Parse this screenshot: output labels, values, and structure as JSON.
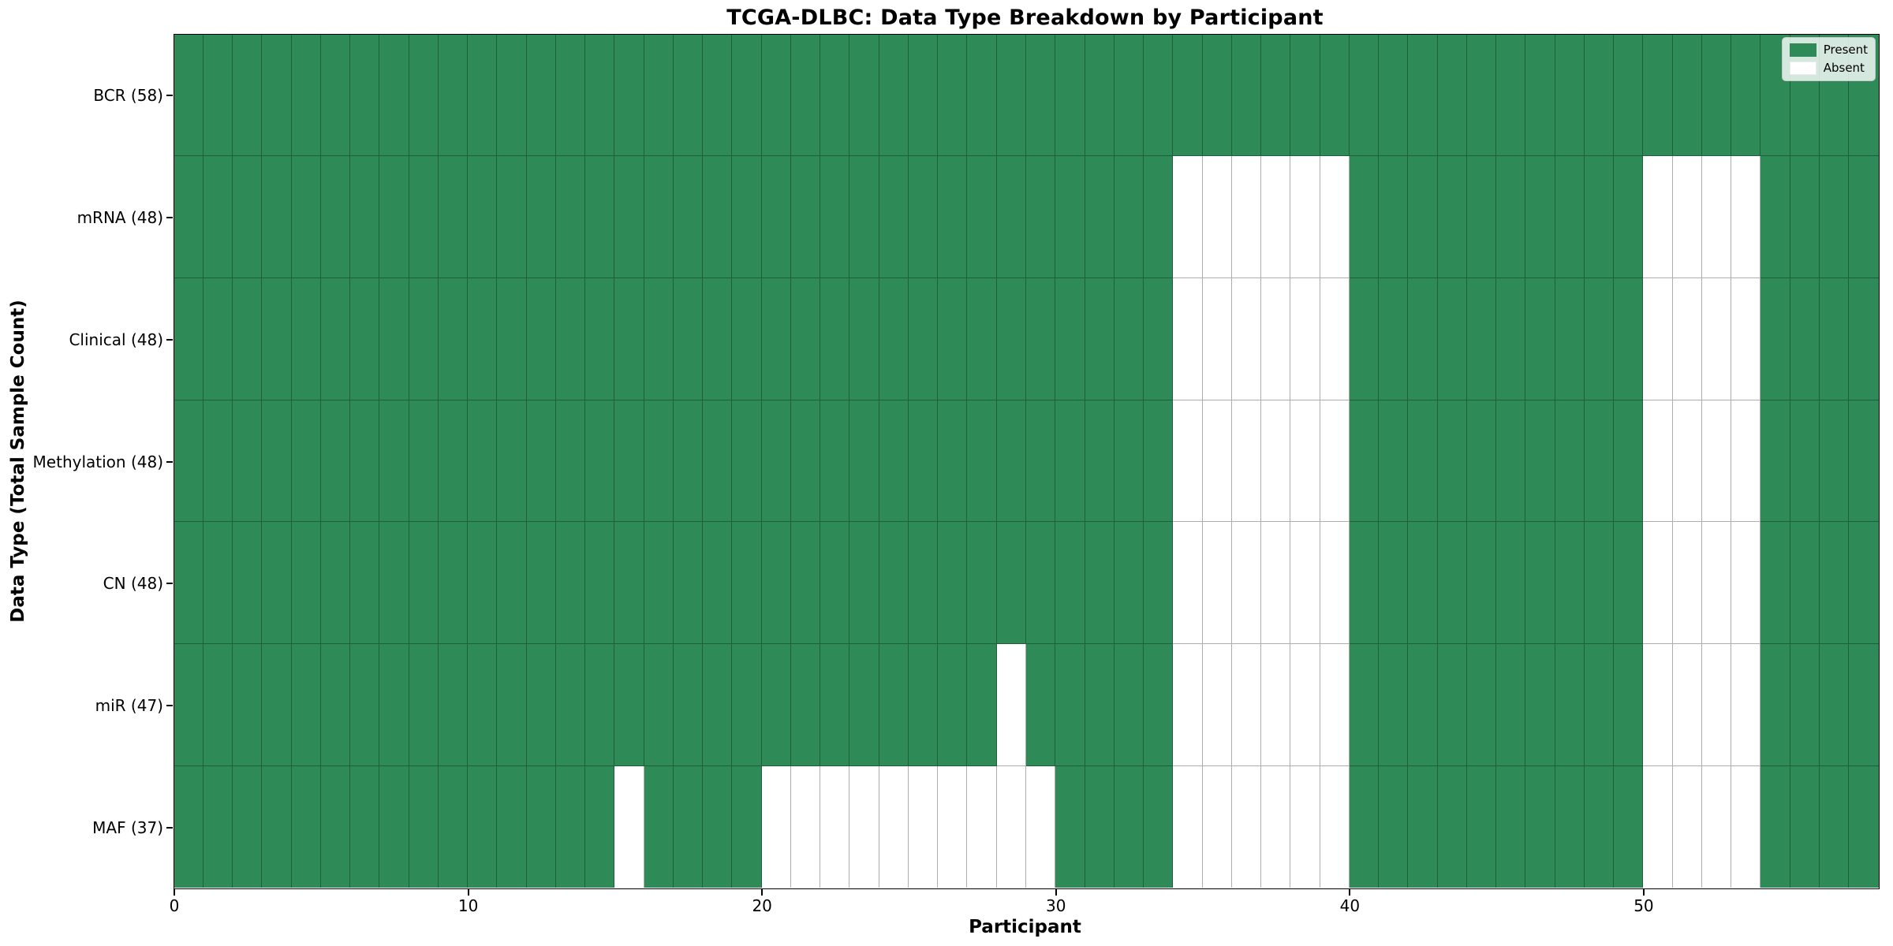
{
  "figure": {
    "title": "TCGA-DLBC: Data Type Breakdown by Participant",
    "xlabel": "Participant",
    "ylabel": "Data Type (Total Sample Count)"
  },
  "chart_data": {
    "type": "heatmap",
    "title": "TCGA-DLBC: Data Type Breakdown by Participant",
    "xlabel": "Participant",
    "ylabel": "Data Type (Total Sample Count)",
    "n_participants": 58,
    "x_axis_range": [
      0,
      58
    ],
    "x_ticks": [
      0,
      10,
      20,
      30,
      40,
      50
    ],
    "colors": {
      "present": "#2e8b57",
      "absent": "#ffffff"
    },
    "legend_position": "upper right",
    "legend": [
      {
        "label": "Present",
        "color": "#2e8b57"
      },
      {
        "label": "Absent",
        "color": "#ffffff"
      }
    ],
    "rows": [
      {
        "name": "BCR",
        "label": "BCR (58)",
        "present_count": 58,
        "absent_participants": []
      },
      {
        "name": "mRNA",
        "label": "mRNA (48)",
        "present_count": 48,
        "absent_participants": [
          34,
          35,
          36,
          37,
          38,
          39,
          50,
          51,
          52,
          53
        ]
      },
      {
        "name": "Clinical",
        "label": "Clinical (48)",
        "present_count": 48,
        "absent_participants": [
          34,
          35,
          36,
          37,
          38,
          39,
          50,
          51,
          52,
          53
        ]
      },
      {
        "name": "Methylation",
        "label": "Methylation (48)",
        "present_count": 48,
        "absent_participants": [
          34,
          35,
          36,
          37,
          38,
          39,
          50,
          51,
          52,
          53
        ]
      },
      {
        "name": "CN",
        "label": "CN (48)",
        "present_count": 48,
        "absent_participants": [
          34,
          35,
          36,
          37,
          38,
          39,
          50,
          51,
          52,
          53
        ]
      },
      {
        "name": "miR",
        "label": "miR (47)",
        "present_count": 47,
        "absent_participants": [
          28,
          34,
          35,
          36,
          37,
          38,
          39,
          50,
          51,
          52,
          53
        ]
      },
      {
        "name": "MAF",
        "label": "MAF (37)",
        "present_count": 37,
        "absent_participants": [
          15,
          20,
          21,
          22,
          23,
          24,
          25,
          26,
          27,
          28,
          29,
          34,
          35,
          36,
          37,
          38,
          39,
          50,
          51,
          52,
          53
        ]
      }
    ]
  }
}
